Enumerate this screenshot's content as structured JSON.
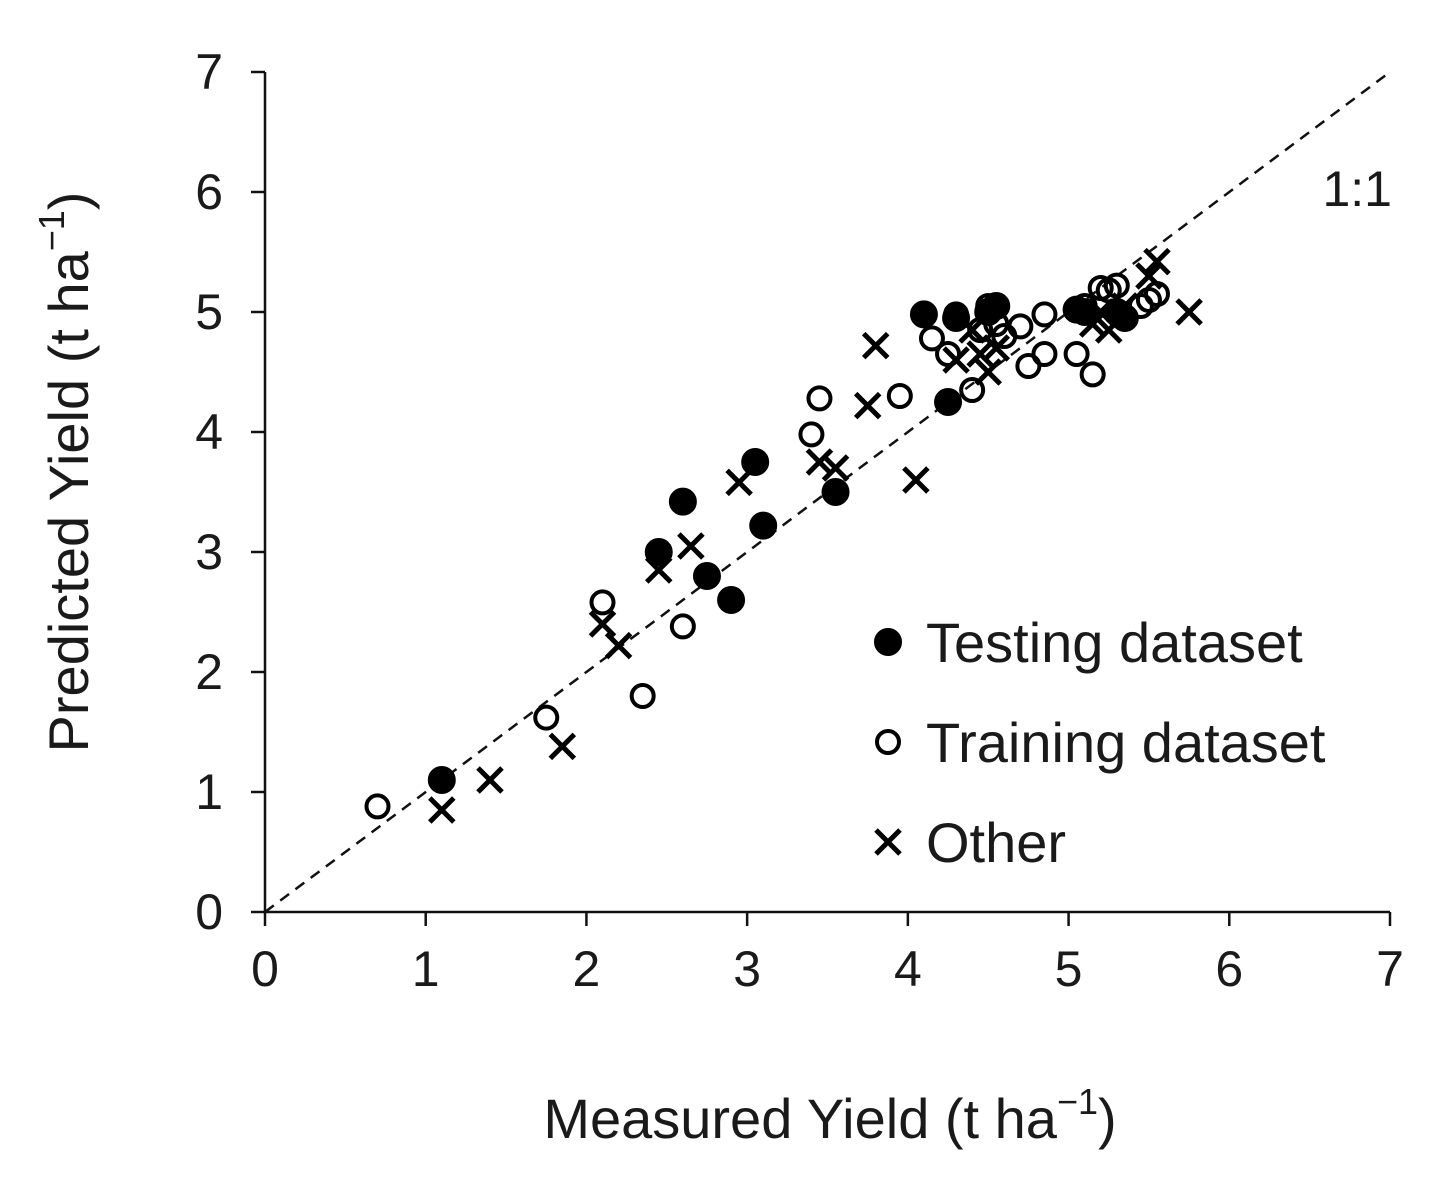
{
  "chart_data": {
    "type": "scatter",
    "xlabel": "Measured Yield (t ha",
    "xlabel_sup": "−1",
    "xlabel_end": ")",
    "ylabel": "Predicted Yield (t ha",
    "ylabel_sup": "−1",
    "ylabel_end": ")",
    "xlim": [
      0,
      7
    ],
    "ylim": [
      0,
      7
    ],
    "xticks": [
      "0",
      "1",
      "2",
      "3",
      "4",
      "5",
      "6",
      "7"
    ],
    "yticks": [
      "0",
      "1",
      "2",
      "3",
      "4",
      "5",
      "6",
      "7"
    ],
    "reference_line": {
      "label": "1:1",
      "from": [
        0,
        0
      ],
      "to": [
        7,
        7
      ]
    },
    "legend_position": "bottom-right",
    "series": [
      {
        "name": "Testing dataset",
        "marker": "filled-circle",
        "x": [
          1.1,
          2.45,
          2.6,
          2.75,
          2.9,
          3.05,
          3.1,
          3.55,
          4.1,
          4.25,
          4.3,
          4.5,
          4.55,
          5.05,
          5.1,
          5.3,
          5.35
        ],
        "y": [
          1.1,
          3.0,
          3.42,
          2.8,
          2.6,
          3.75,
          3.22,
          3.5,
          4.98,
          4.25,
          4.95,
          5.0,
          5.05,
          5.02,
          5.0,
          5.0,
          4.95
        ]
      },
      {
        "name": "Training dataset",
        "marker": "open-circle",
        "x": [
          0.7,
          1.75,
          2.1,
          2.35,
          2.6,
          3.4,
          3.45,
          3.95,
          4.15,
          4.25,
          4.3,
          4.4,
          4.45,
          4.5,
          4.55,
          4.6,
          4.7,
          4.75,
          4.85,
          4.85,
          5.05,
          5.1,
          5.15,
          5.2,
          5.25,
          5.3,
          5.45,
          5.5,
          5.55
        ],
        "y": [
          0.88,
          1.62,
          2.58,
          1.8,
          2.38,
          3.98,
          4.28,
          4.3,
          4.78,
          4.65,
          4.98,
          4.35,
          4.85,
          5.05,
          4.9,
          4.8,
          4.88,
          4.55,
          4.65,
          4.98,
          4.65,
          5.05,
          4.48,
          5.2,
          5.18,
          5.22,
          5.05,
          5.1,
          5.15
        ]
      },
      {
        "name": "Other",
        "marker": "x",
        "x": [
          1.1,
          1.4,
          1.85,
          2.1,
          2.2,
          2.45,
          2.65,
          2.95,
          3.45,
          3.55,
          3.75,
          3.8,
          4.05,
          4.3,
          4.4,
          4.45,
          4.5,
          4.55,
          5.15,
          5.2,
          5.25,
          5.35,
          5.5,
          5.55,
          5.75
        ],
        "y": [
          0.85,
          1.1,
          1.38,
          2.4,
          2.22,
          2.85,
          3.05,
          3.58,
          3.75,
          3.7,
          4.22,
          4.72,
          3.6,
          4.6,
          4.85,
          4.65,
          4.5,
          4.7,
          4.9,
          5.0,
          4.85,
          5.05,
          5.3,
          5.42,
          5.0
        ]
      }
    ]
  }
}
